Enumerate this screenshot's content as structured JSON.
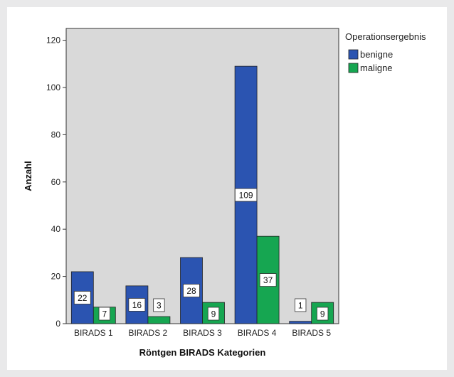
{
  "chart_data": {
    "type": "bar",
    "categories": [
      "BIRADS 1",
      "BIRADS 2",
      "BIRADS 3",
      "BIRADS 4",
      "BIRADS 5"
    ],
    "series": [
      {
        "name": "benigne",
        "values": [
          22,
          16,
          28,
          109,
          1
        ],
        "color": "#2b54b1"
      },
      {
        "name": "maligne",
        "values": [
          7,
          3,
          9,
          37,
          9
        ],
        "color": "#16a651"
      }
    ],
    "title": "",
    "xlabel": "Röntgen BIRADS Kategorien",
    "ylabel": "Anzahl",
    "ylim": [
      0,
      125
    ],
    "yticks": [
      0,
      20,
      40,
      60,
      80,
      100,
      120
    ],
    "legend_title": "Operationsergebnis",
    "legend_position": "top-right, outside plot",
    "grid": false,
    "data_labels": true,
    "plot_background": "#d9d9d9"
  }
}
